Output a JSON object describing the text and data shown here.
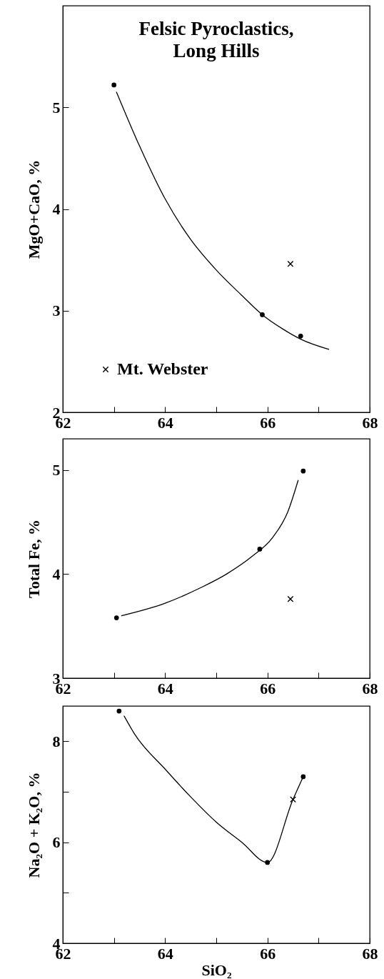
{
  "chart_data": [
    {
      "type": "scatter",
      "title": "Felsic Pyroclastics,\nLong Hills",
      "ylabel": "MgO+CaO, %",
      "xlim": [
        62,
        68
      ],
      "xticks": [
        62,
        {
          "value": 63,
          "label": null
        },
        64,
        {
          "value": 65,
          "label": null
        },
        66,
        {
          "value": 67,
          "label": null
        },
        68
      ],
      "ylim": [
        2,
        6
      ],
      "yticks": [
        2,
        3,
        4,
        5
      ],
      "legend": "bottom left",
      "series": [
        {
          "type": "line",
          "color": "#000000",
          "marker": "none",
          "x": [
            63.05,
            63.5,
            64.0,
            64.5,
            65.0,
            65.5,
            65.9,
            66.3,
            66.65,
            67.2
          ],
          "values": [
            5.15,
            4.62,
            4.1,
            3.7,
            3.4,
            3.15,
            2.96,
            2.82,
            2.72,
            2.62
          ]
        },
        {
          "color": "#000000",
          "marker": "circle",
          "x": [
            63.0,
            65.9,
            66.65
          ],
          "values": [
            5.22,
            2.96,
            2.75
          ]
        },
        {
          "name": "Mt. Webster",
          "color": "#000000",
          "marker": "cross",
          "x": [
            66.45
          ],
          "values": [
            3.46
          ]
        }
      ]
    },
    {
      "type": "scatter",
      "ylabel": "Total Fe, %",
      "xlim": [
        62,
        68
      ],
      "xticks": [
        62,
        {
          "value": 63,
          "label": null
        },
        64,
        {
          "value": 65,
          "label": null
        },
        66,
        {
          "value": 67,
          "label": null
        },
        68
      ],
      "ylim": [
        3,
        5.3
      ],
      "yticks": [
        3,
        4,
        5
      ],
      "series": [
        {
          "type": "line",
          "color": "#000000",
          "marker": "none",
          "x": [
            63.15,
            64.0,
            64.7,
            65.2,
            65.7,
            66.1,
            66.4,
            66.6
          ],
          "values": [
            3.6,
            3.72,
            3.87,
            4.0,
            4.17,
            4.35,
            4.6,
            4.9
          ]
        },
        {
          "color": "#000000",
          "marker": "circle",
          "x": [
            63.05,
            65.85,
            66.7
          ],
          "values": [
            3.58,
            4.24,
            4.99
          ]
        },
        {
          "color": "#000000",
          "marker": "cross",
          "x": [
            66.45
          ],
          "values": [
            3.76
          ]
        }
      ]
    },
    {
      "type": "scatter",
      "xlabel": "SiO₂",
      "ylabel": "Na₂O + K₂O, %",
      "xlim": [
        62,
        68
      ],
      "xticks": [
        62,
        {
          "value": 63,
          "label": null
        },
        64,
        {
          "value": 65,
          "label": null
        },
        66,
        {
          "value": 67,
          "label": null
        },
        68
      ],
      "ylim": [
        4,
        8.7
      ],
      "yticks": [
        4,
        {
          "value": 5,
          "label": null
        },
        6,
        {
          "value": 7,
          "label": null
        },
        8
      ],
      "series": [
        {
          "type": "line",
          "color": "#000000",
          "marker": "none",
          "x": [
            63.2,
            63.4,
            64.0,
            64.5,
            65.0,
            65.5,
            66.0,
            66.5,
            66.7
          ],
          "values": [
            8.5,
            8.15,
            7.45,
            6.9,
            6.4,
            6.0,
            5.6,
            6.85,
            7.3
          ]
        },
        {
          "color": "#000000",
          "marker": "circle",
          "x": [
            63.1,
            66.0,
            66.7
          ],
          "values": [
            8.6,
            5.6,
            7.3
          ]
        },
        {
          "color": "#000000",
          "marker": "cross",
          "x": [
            66.5
          ],
          "values": [
            6.85
          ]
        }
      ]
    }
  ]
}
